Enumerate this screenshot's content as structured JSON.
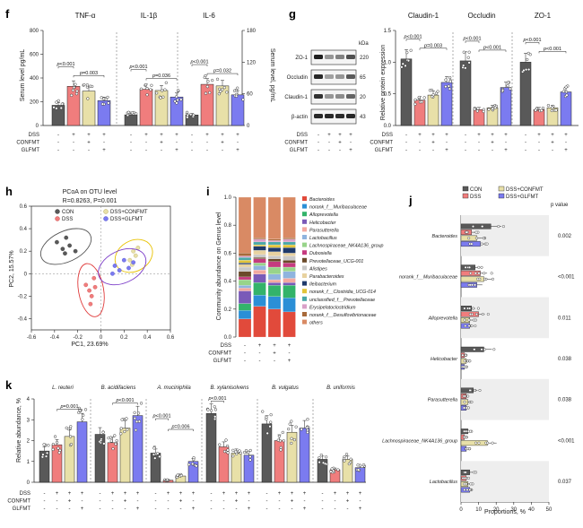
{
  "colors": {
    "CON": "#595959",
    "DSS": "#f07d7d",
    "CONFMT": "#e8e0a8",
    "GLFMT": "#7b7bf0",
    "CON_stroke": "#333333",
    "DSS_stroke": "#c43c3c",
    "CONFMT_stroke": "#a89a45",
    "GLFMT_stroke": "#3b3bc4"
  },
  "panel_f": {
    "letter": "f",
    "titles": [
      "TNF-α",
      "IL-1β",
      "IL-6"
    ],
    "ylabel_left": "Serum level pg/mL",
    "ylabel_right": "Serum level, pg/mL",
    "left_ticks": [
      "0",
      "200",
      "400",
      "600",
      "800"
    ],
    "right_ticks": [
      "0",
      "60",
      "120",
      "180"
    ],
    "pvals": [
      [
        "p<0.001",
        "p=0.003"
      ],
      [
        "p<0.001",
        "p=0.036"
      ],
      [
        "p<0.001",
        "p=0.032"
      ]
    ]
  },
  "group_rows": {
    "labels": [
      "DSS",
      "CONFMT",
      "GLFMT"
    ],
    "signs": [
      [
        "-",
        "+",
        "+",
        "+"
      ],
      [
        "-",
        "-",
        "+",
        "-"
      ],
      [
        "-",
        "-",
        "-",
        "+"
      ]
    ]
  },
  "panel_g": {
    "letter": "g",
    "kda_label": "kDa",
    "blot_rows": [
      {
        "name": "ZO-1",
        "kda": "220"
      },
      {
        "name": "Occludin",
        "kda": "65"
      },
      {
        "name": "Claudin-1",
        "kda": "20"
      },
      {
        "name": "β-actin",
        "kda": "43"
      }
    ],
    "titles": [
      "Claudin-1",
      "Occludin",
      "ZO-1"
    ],
    "ylabel": "Relative protein expression",
    "yticks": [
      "0.0",
      "0.5",
      "1.0",
      "1.5"
    ],
    "pvals": [
      [
        "p<0.001",
        "p=0.003"
      ],
      [
        "p<0.001",
        "p<0.001"
      ],
      [
        "p<0.001",
        "p<0.001"
      ]
    ]
  },
  "panel_h": {
    "letter": "h",
    "title": "PCoA on OTU level",
    "stat": "R=0.8263, P=0.001",
    "xlabel": "PC1, 23.69%",
    "ylabel": "PC2, 15.57%",
    "xticks": [
      "-0.6",
      "-0.4",
      "-0.2",
      "0",
      "0.2",
      "0.4",
      "0.6"
    ],
    "yticks": [
      "0.6",
      "0.4",
      "0.2",
      "0",
      "-0.2",
      "-0.4"
    ],
    "legend": [
      "CON",
      "DSS",
      "DSS+CONFMT",
      "DSS+GLFMT"
    ]
  },
  "panel_i": {
    "letter": "i",
    "ylabel": "Community abundance on Genus level",
    "yticks": [
      "0.0",
      "0.2",
      "0.4",
      "0.6",
      "0.8",
      "1.0"
    ],
    "legend": [
      {
        "name": "Bacteroides",
        "color": "#e14a3b"
      },
      {
        "name": "norank_f__Muribaculaceae",
        "color": "#2b8fd6"
      },
      {
        "name": "Alloprevotella",
        "color": "#33b36a"
      },
      {
        "name": "Helicobacter",
        "color": "#7a5ab8"
      },
      {
        "name": "Parasutterella",
        "color": "#f3a9a0"
      },
      {
        "name": "Lactobacillus",
        "color": "#8fb4de"
      },
      {
        "name": "Lachnospiraceae_NK4A136_group",
        "color": "#98d48a"
      },
      {
        "name": "Dubosiella",
        "color": "#c53b7f"
      },
      {
        "name": "Prevotellaceae_UCG-001",
        "color": "#6b4a2a"
      },
      {
        "name": "Alistipes",
        "color": "#c9c9c9"
      },
      {
        "name": "Parabacteroides",
        "color": "#e8d2a0"
      },
      {
        "name": "Ileibacterium",
        "color": "#1f3a6b"
      },
      {
        "name": "norank_f__Clostridia_UCG-014",
        "color": "#e2c43a"
      },
      {
        "name": "unclassified_f__Prevotellaceae",
        "color": "#4aa8a8"
      },
      {
        "name": "Erysipelatoclostridium",
        "color": "#d9a0c8"
      },
      {
        "name": "norank_f__Desulfovibrionaceae",
        "color": "#a86a3a"
      },
      {
        "name": "others",
        "color": "#d98a64"
      }
    ]
  },
  "panel_j": {
    "letter": "j",
    "legend": [
      "CON",
      "DSS",
      "DSS+CONFMT",
      "DSS+GLFMT"
    ],
    "pvalue_header": "p value",
    "xlabel": "Proportions, %",
    "xticks": [
      "0",
      "10",
      "20",
      "30",
      "40",
      "50"
    ],
    "taxa": [
      {
        "name": "Bacteroides",
        "p": "0.002",
        "red": true
      },
      {
        "name": "norank_f__Muribaculaceae",
        "p": "<0.001",
        "red": false
      },
      {
        "name": "Alloprevotella",
        "p": "0.011",
        "red": false
      },
      {
        "name": "Helicobacter",
        "p": "0.038",
        "red": false
      },
      {
        "name": "Parasutterella",
        "p": "0.038",
        "red": false
      },
      {
        "name": "Lachnospiraceae_NK4A136_group",
        "p": "<0.001",
        "red": false
      },
      {
        "name": "Lactobacillus",
        "p": "0.037",
        "red": false
      }
    ]
  },
  "panel_k": {
    "letter": "k",
    "titles": [
      {
        "name": "L. reuteri",
        "red": false
      },
      {
        "name": "B. acidifaciens",
        "red": true
      },
      {
        "name": "A. muciniphila",
        "red": false
      },
      {
        "name": "B. xylanisolvens",
        "red": false
      },
      {
        "name": "B. vulgatus",
        "red": false
      },
      {
        "name": "B. uniformis",
        "red": false
      }
    ],
    "ylabel": "Relative abundance, %",
    "yticks": [
      "0",
      "1",
      "2",
      "3",
      "4"
    ],
    "pvals": [
      [
        "p=0.001"
      ],
      [
        "p<0.001"
      ],
      [
        "p<0.001",
        "p=0.006"
      ],
      [
        "p<0.001"
      ],
      [],
      []
    ]
  },
  "chart_data": [
    {
      "type": "bar",
      "panel": "f",
      "categories": [
        "CON",
        "DSS",
        "DSS+CONFMT",
        "DSS+GLFMT"
      ],
      "series": [
        {
          "name": "TNF-α",
          "values": [
            170,
            330,
            290,
            210
          ]
        },
        {
          "name": "IL-1β",
          "values": [
            90,
            305,
            295,
            240
          ]
        },
        {
          "name": "IL-6",
          "values": [
            20,
            78,
            75,
            58
          ]
        }
      ],
      "ylim_left": [
        0,
        800
      ],
      "ylim_right": [
        0,
        180
      ]
    },
    {
      "type": "bar",
      "panel": "g",
      "categories": [
        "CON",
        "DSS",
        "DSS+CONFMT",
        "DSS+GLFMT"
      ],
      "series": [
        {
          "name": "Claudin-1",
          "values": [
            1.05,
            0.4,
            0.48,
            0.68
          ]
        },
        {
          "name": "Occludin",
          "values": [
            1.02,
            0.25,
            0.28,
            0.6
          ]
        },
        {
          "name": "ZO-1",
          "values": [
            1.0,
            0.25,
            0.28,
            0.53
          ]
        }
      ],
      "ylim": [
        0,
        1.5
      ]
    },
    {
      "type": "scatter",
      "panel": "h",
      "series": [
        {
          "name": "CON",
          "points": [
            [
              -0.38,
              0.28
            ],
            [
              -0.33,
              0.22
            ],
            [
              -0.3,
              0.32
            ],
            [
              -0.27,
              0.25
            ],
            [
              -0.22,
              0.2
            ],
            [
              -0.31,
              0.18
            ]
          ]
        },
        {
          "name": "DSS",
          "points": [
            [
              -0.13,
              -0.1
            ],
            [
              -0.1,
              -0.15
            ],
            [
              -0.08,
              -0.2
            ],
            [
              -0.05,
              -0.12
            ],
            [
              -0.09,
              -0.27
            ],
            [
              -0.06,
              -0.04
            ]
          ]
        },
        {
          "name": "DSS+CONFMT",
          "points": [
            [
              0.28,
              0.2
            ],
            [
              0.3,
              0.16
            ],
            [
              0.25,
              0.12
            ],
            [
              0.32,
              0.23
            ],
            [
              0.27,
              0.08
            ]
          ]
        },
        {
          "name": "DSS+GLFMT",
          "points": [
            [
              0.12,
              0.07
            ],
            [
              0.2,
              0.12
            ],
            [
              0.16,
              0.03
            ],
            [
              0.24,
              0.05
            ],
            [
              0.1,
              0.0
            ],
            [
              0.28,
              0.1
            ]
          ]
        }
      ],
      "xlim": [
        -0.6,
        0.6
      ],
      "ylim": [
        -0.5,
        0.6
      ]
    },
    {
      "type": "bar",
      "stacked": true,
      "panel": "i",
      "categories": [
        "CON",
        "DSS",
        "DSS+CONFMT",
        "DSS+GLFMT"
      ],
      "series": [
        {
          "name": "Bacteroides",
          "values": [
            0.13,
            0.22,
            0.2,
            0.18
          ]
        },
        {
          "name": "norank_f__Muribaculaceae",
          "values": [
            0.06,
            0.08,
            0.09,
            0.1
          ]
        },
        {
          "name": "Alloprevotella",
          "values": [
            0.05,
            0.09,
            0.08,
            0.09
          ]
        },
        {
          "name": "Helicobacter",
          "values": [
            0.09,
            0.06,
            0.02,
            0.02
          ]
        },
        {
          "name": "Parasutterella",
          "values": [
            0.02,
            0.03,
            0.02,
            0.03
          ]
        },
        {
          "name": "Lactobacillus",
          "values": [
            0.02,
            0.03,
            0.04,
            0.05
          ]
        },
        {
          "name": "Lachnospiraceae_NK4A136_group",
          "values": [
            0.04,
            0.02,
            0.05,
            0.03
          ]
        },
        {
          "name": "Dubosiella",
          "values": [
            0.02,
            0.03,
            0.04,
            0.03
          ]
        },
        {
          "name": "Prevotellaceae_UCG-001",
          "values": [
            0.04,
            0.01,
            0.02,
            0.02
          ]
        },
        {
          "name": "Alistipes",
          "values": [
            0.03,
            0.02,
            0.02,
            0.03
          ]
        },
        {
          "name": "Parabacteroides",
          "values": [
            0.02,
            0.03,
            0.03,
            0.02
          ]
        },
        {
          "name": "Ileibacterium",
          "values": [
            0.01,
            0.03,
            0.03,
            0.04
          ]
        },
        {
          "name": "norank_f__Clostridia_UCG-014",
          "values": [
            0.02,
            0.01,
            0.02,
            0.02
          ]
        },
        {
          "name": "unclassified_f__Prevotellaceae",
          "values": [
            0.02,
            0.02,
            0.02,
            0.02
          ]
        },
        {
          "name": "Erysipelatoclostridium",
          "values": [
            0.01,
            0.02,
            0.01,
            0.02
          ]
        },
        {
          "name": "norank_f__Desulfovibrionaceae",
          "values": [
            0.02,
            0.01,
            0.01,
            0.01
          ]
        },
        {
          "name": "others",
          "values": [
            0.4,
            0.29,
            0.3,
            0.29
          ]
        }
      ],
      "ylim": [
        0,
        1
      ]
    },
    {
      "type": "bar",
      "orientation": "horizontal",
      "panel": "j",
      "categories": [
        "Bacteroides",
        "norank_f__Muribaculaceae",
        "Alloprevotella",
        "Helicobacter",
        "Parasutterella",
        "Lachnospiraceae_NK4A136_group",
        "Lactobacillus"
      ],
      "series": [
        {
          "name": "CON",
          "values": [
            17,
            8,
            6,
            13,
            7,
            4,
            5
          ]
        },
        {
          "name": "DSS",
          "values": [
            6,
            11,
            10,
            2,
            3,
            2,
            3
          ]
        },
        {
          "name": "DSS+CONFMT",
          "values": [
            9,
            13,
            5,
            3,
            4,
            15,
            4
          ]
        },
        {
          "name": "DSS+GLFMT",
          "values": [
            11,
            9,
            5,
            2,
            3,
            3,
            5
          ]
        }
      ],
      "xlim": [
        0,
        50
      ]
    },
    {
      "type": "bar",
      "panel": "k",
      "categories": [
        "CON",
        "DSS",
        "DSS+CONFMT",
        "DSS+GLFMT"
      ],
      "series": [
        {
          "name": "L. reuteri",
          "values": [
            1.5,
            1.8,
            2.2,
            2.9
          ]
        },
        {
          "name": "B. acidifaciens",
          "values": [
            2.3,
            1.9,
            2.6,
            3.2
          ]
        },
        {
          "name": "A. muciniphila",
          "values": [
            1.4,
            0.1,
            0.3,
            1.0
          ]
        },
        {
          "name": "B. xylanisolvens",
          "values": [
            3.3,
            1.7,
            1.4,
            1.3
          ]
        },
        {
          "name": "B. vulgatus",
          "values": [
            2.8,
            2.0,
            2.4,
            2.6
          ]
        },
        {
          "name": "B. uniformis",
          "values": [
            1.1,
            0.6,
            1.1,
            0.7
          ]
        }
      ],
      "ylim": [
        0,
        4
      ]
    }
  ]
}
